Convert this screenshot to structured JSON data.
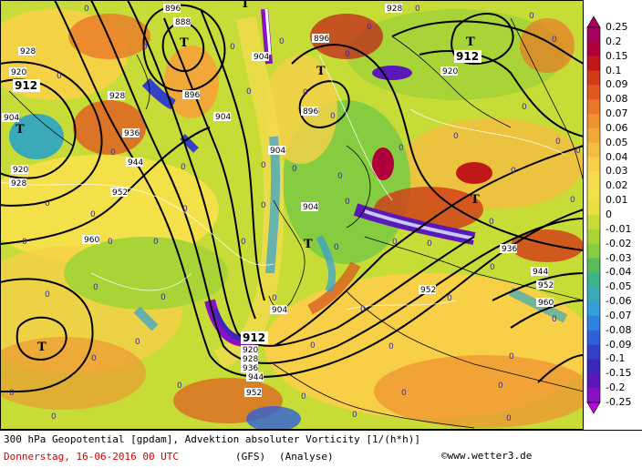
{
  "title_line": "300 hPa Geopotential [gpdam], Advektion absoluter Vorticity [1/(h*h)]",
  "date_line": "Donnerstag, 16-06-2016  00 UTC",
  "model": "(GFS)",
  "run_type": "(Analyse)",
  "credit": "©www.wetter3.de",
  "legend": {
    "values": [
      "0.25",
      "0.2",
      "0.15",
      "0.1",
      "0.09",
      "0.08",
      "0.07",
      "0.06",
      "0.05",
      "0.04",
      "0.03",
      "0.02",
      "0.01",
      "0",
      "-0.01",
      "-0.02",
      "-0.03",
      "-0.04",
      "-0.05",
      "-0.06",
      "-0.07",
      "-0.08",
      "-0.09",
      "-0.1",
      "-0.15",
      "-0.2",
      "-0.25"
    ],
    "colors": [
      "#a50062",
      "#b0003a",
      "#c01818",
      "#d23a18",
      "#e05a20",
      "#e87828",
      "#ee9030",
      "#f2a838",
      "#f5bd40",
      "#f8d048",
      "#f8dc50",
      "#f4e048",
      "#e8e040",
      "#c8dc38",
      "#a8d438",
      "#86cc40",
      "#58bc5c",
      "#3ab48c",
      "#3aaab8",
      "#30a0d8",
      "#2e82e0",
      "#3060d8",
      "#3440c8",
      "#3a28b8",
      "#5a18b8",
      "#8a10c8",
      "#b808d8"
    ]
  },
  "contours": [
    {
      "label": "888",
      "kind": "isohypse"
    },
    {
      "label": "896",
      "kind": "isohypse"
    },
    {
      "label": "904",
      "kind": "isohypse"
    },
    {
      "label": "912",
      "kind": "isohypse"
    },
    {
      "label": "920",
      "kind": "isohypse"
    },
    {
      "label": "928",
      "kind": "isohypse"
    },
    {
      "label": "936",
      "kind": "isohypse"
    },
    {
      "label": "944",
      "kind": "isohypse"
    },
    {
      "label": "952",
      "kind": "isohypse"
    },
    {
      "label": "960",
      "kind": "isohypse"
    }
  ],
  "centers": [
    {
      "label": "T",
      "value": ""
    },
    {
      "label": "T",
      "value": "912"
    },
    {
      "label": "T",
      "value": "912"
    },
    {
      "label": "T",
      "value": ""
    },
    {
      "label": "T",
      "value": ""
    },
    {
      "label": "T",
      "value": ""
    },
    {
      "label": "T",
      "value": "960"
    },
    {
      "label": "T",
      "value": "912"
    }
  ],
  "zero_label": "0"
}
